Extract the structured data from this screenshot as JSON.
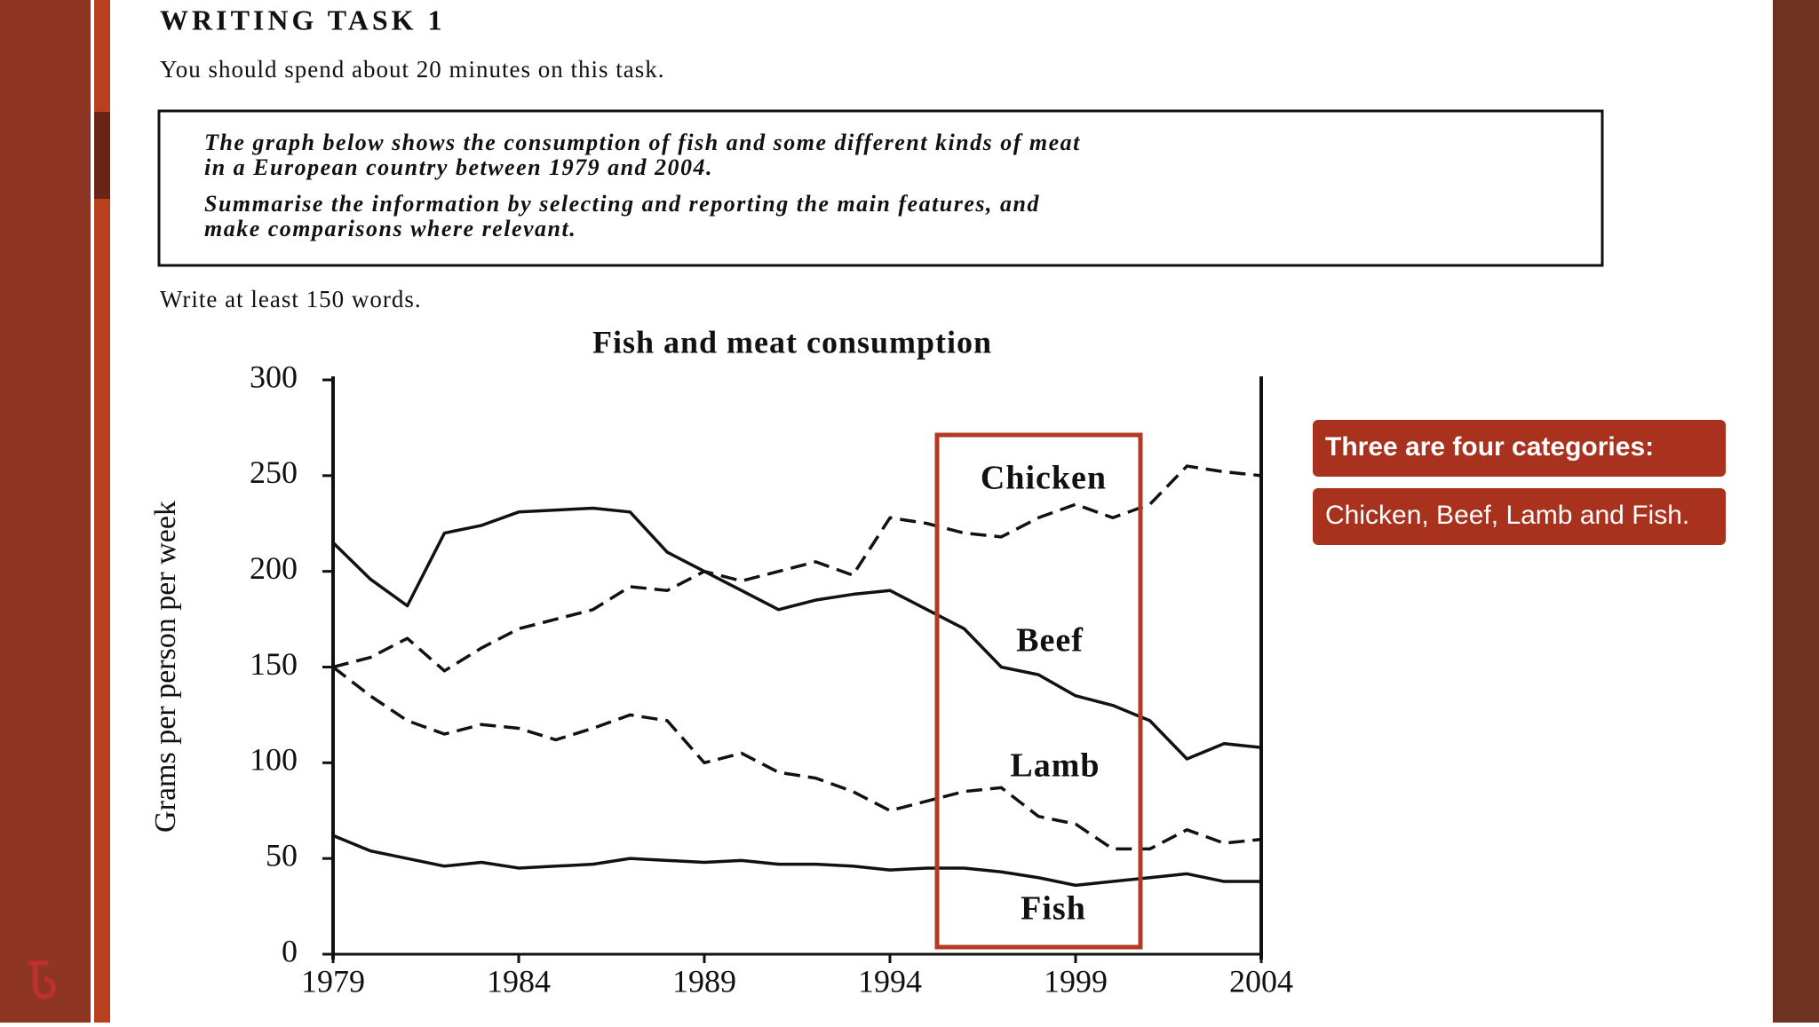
{
  "task": {
    "heading": "WRITING TASK 1",
    "time_note": "You should spend about 20 minutes on this task.",
    "prompt_lines": [
      "The graph below shows the consumption of fish and some different kinds of meat",
      "in a European country between 1979 and 2004.",
      "Summarise the information by selecting and reporting the main features, and",
      "make comparisons where relevant."
    ],
    "word_note": "Write at least 150 words."
  },
  "callouts": [
    "Three are four categories:",
    "Chicken, Beef, Lamb and Fish."
  ],
  "chart_data": {
    "type": "line",
    "title": "Fish and meat consumption",
    "y_label": "Grams per person per week",
    "x": [
      1979,
      1980,
      1981,
      1982,
      1983,
      1984,
      1985,
      1986,
      1987,
      1988,
      1989,
      1990,
      1991,
      1992,
      1993,
      1994,
      1995,
      1996,
      1997,
      1998,
      1999,
      2000,
      2001,
      2002,
      2003,
      2004
    ],
    "series": [
      {
        "name": "Chicken",
        "color": "#111111",
        "dashed": true,
        "values": [
          150,
          155,
          165,
          148,
          160,
          170,
          175,
          180,
          192,
          190,
          200,
          195,
          200,
          205,
          198,
          228,
          225,
          220,
          218,
          228,
          235,
          228,
          235,
          255,
          252,
          250
        ]
      },
      {
        "name": "Beef",
        "color": "#111111",
        "dashed": false,
        "values": [
          215,
          196,
          182,
          220,
          224,
          231,
          232,
          233,
          231,
          210,
          200,
          190,
          180,
          185,
          188,
          190,
          180,
          170,
          150,
          146,
          135,
          130,
          122,
          102,
          110,
          108
        ]
      },
      {
        "name": "Lamb",
        "color": "#111111",
        "dashed": true,
        "values": [
          150,
          135,
          122,
          115,
          120,
          118,
          112,
          118,
          125,
          122,
          100,
          105,
          95,
          92,
          85,
          75,
          80,
          85,
          87,
          72,
          68,
          55,
          55,
          65,
          58,
          60
        ]
      },
      {
        "name": "Fish",
        "color": "#111111",
        "dashed": false,
        "values": [
          62,
          54,
          50,
          46,
          48,
          45,
          46,
          47,
          50,
          49,
          48,
          49,
          47,
          47,
          46,
          44,
          45,
          45,
          43,
          40,
          36,
          38,
          40,
          42,
          38,
          38
        ]
      }
    ],
    "xlim": [
      1979,
      2004
    ],
    "xticks": [
      1979,
      1984,
      1989,
      1994,
      1999,
      2004
    ],
    "ylim": [
      0,
      300
    ],
    "yticks": [
      0,
      50,
      100,
      150,
      200,
      250,
      300
    ],
    "grid": false
  }
}
